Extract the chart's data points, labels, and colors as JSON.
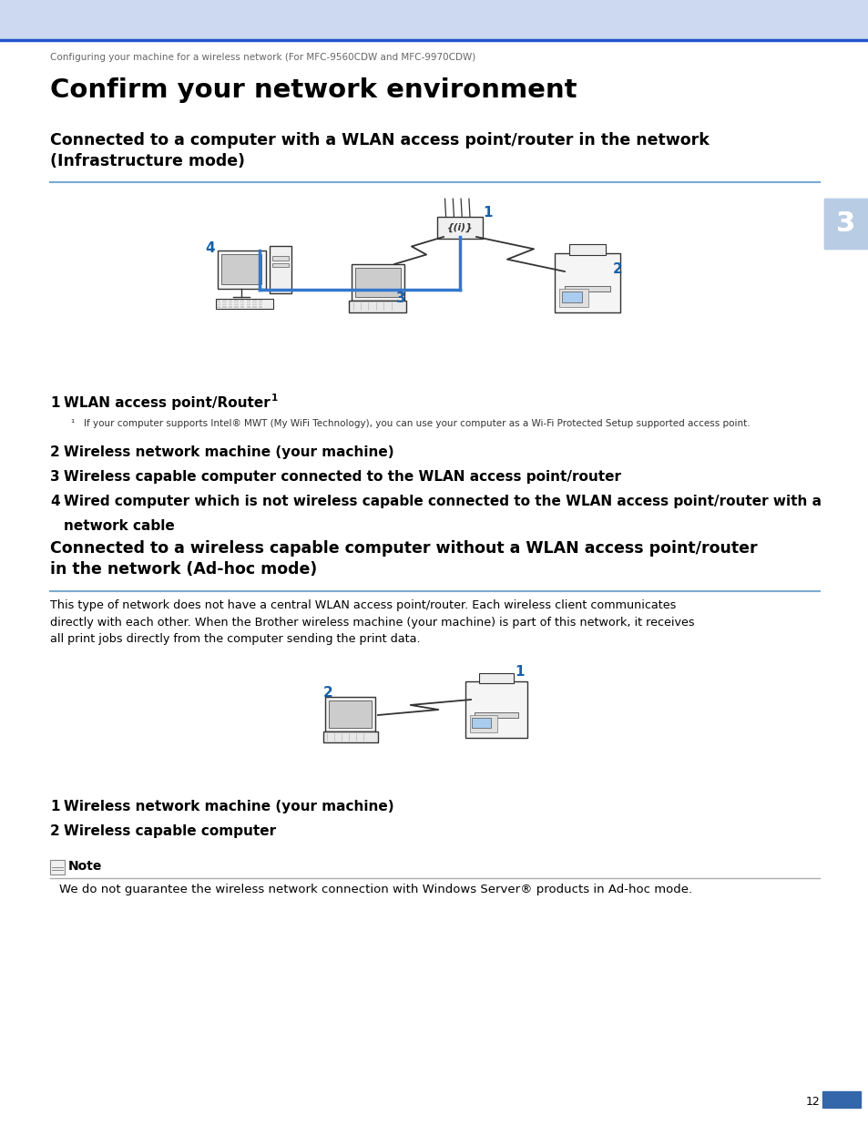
{
  "page_bg": "#ffffff",
  "header_bg": "#ccd9f0",
  "header_line_color": "#2255cc",
  "header_text": "Configuring your machine for a wireless network (For MFC-9560CDW and MFC-9970CDW)",
  "main_title": "Confirm your network environment",
  "section1_title": "Connected to a computer with a WLAN access point/router in the network\n(Infrastructure mode)",
  "section2_title": "Connected to a wireless capable computer without a WLAN access point/router\nin the network (Ad-hoc mode)",
  "note_label": "Note",
  "note_text": "We do not guarantee the wireless network connection with Windows Server® products in Ad-hoc mode.",
  "item1_bold": "1  WLAN access point/Router ",
  "item1_super": "1",
  "item1_footnote": "¹   If your computer supports Intel® MWT (My WiFi Technology), you can use your computer as a Wi-Fi Protected Setup supported access point.",
  "item2": "2  Wireless network machine (your machine)",
  "item3": "3  Wireless capable computer connected to the WLAN access point/router",
  "item4": "4  Wired computer which is not wireless capable connected to the WLAN access point/router with a\n    network cable",
  "item_s1": "1  Wireless network machine (your machine)",
  "item_s2": "2  Wireless capable computer",
  "chapter_num": "3",
  "page_num": "12",
  "section_line_color": "#7aaad0",
  "blue_label_color": "#1a5fa8",
  "desc2": "This type of network does not have a central WLAN access point/router. Each wireless client communicates\ndirectly with each other. When the Brother wireless machine (your machine) is part of this network, it receives\nall print jobs directly from the computer sending the print data."
}
